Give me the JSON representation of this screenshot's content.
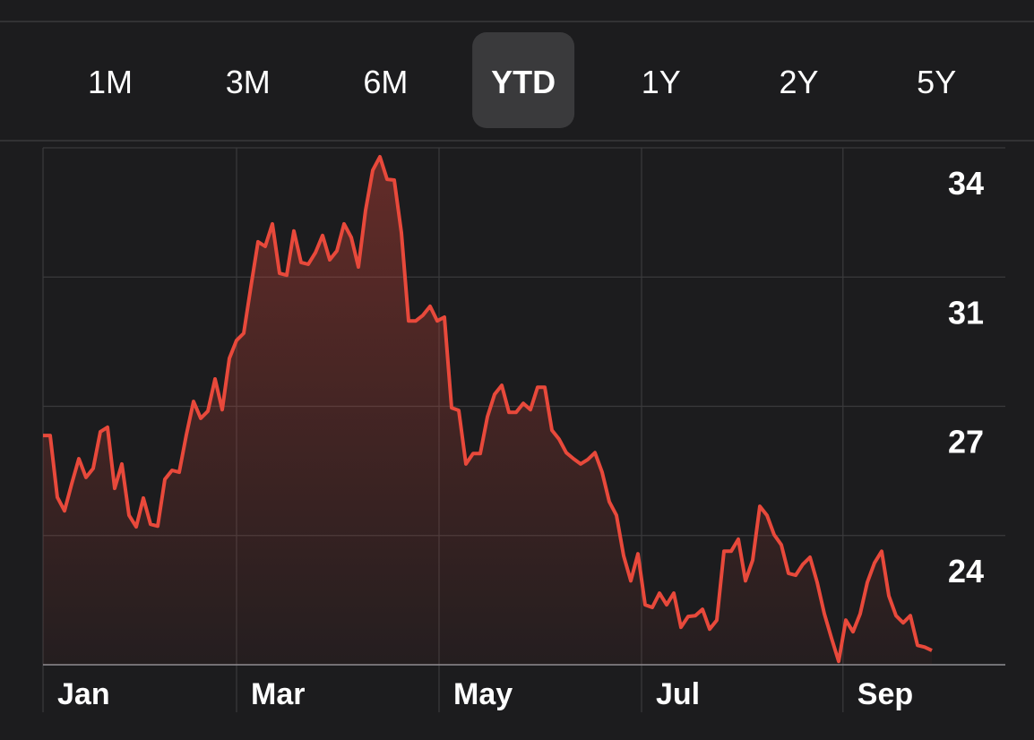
{
  "range_selector": {
    "options": [
      "1M",
      "3M",
      "6M",
      "YTD",
      "1Y",
      "2Y",
      "5Y"
    ],
    "selected": 3
  },
  "chart_data": {
    "type": "line",
    "area": true,
    "grid": true,
    "color": "#e8493b",
    "xlim": [
      0,
      134.25
    ],
    "xticks": [
      {
        "value": 0,
        "label": "Jan"
      },
      {
        "value": 27,
        "label": "Mar"
      },
      {
        "value": 55.25,
        "label": "May"
      },
      {
        "value": 83.5,
        "label": "Jul"
      },
      {
        "value": 111.6,
        "label": "Sep"
      }
    ],
    "ylim": [
      20.5,
      34.3
    ],
    "yticks": [
      34.3,
      30.85,
      27.4,
      23.95
    ],
    "ytick_labels": [
      "34",
      "31",
      "27",
      "24"
    ],
    "values": [
      26.62,
      26.62,
      24.97,
      24.61,
      25.33,
      26.0,
      25.5,
      25.74,
      26.72,
      26.84,
      25.21,
      25.86,
      24.49,
      24.18,
      24.95,
      24.25,
      24.2,
      25.45,
      25.69,
      25.64,
      26.64,
      27.53,
      27.08,
      27.27,
      28.13,
      27.31,
      28.68,
      29.16,
      29.35,
      30.59,
      31.79,
      31.67,
      32.27,
      30.95,
      30.9,
      32.08,
      31.24,
      31.19,
      31.5,
      31.96,
      31.31,
      31.55,
      32.27,
      31.91,
      31.12,
      32.63,
      33.7,
      34.06,
      33.46,
      33.44,
      32.03,
      29.68,
      29.68,
      29.83,
      30.07,
      29.68,
      29.78,
      27.36,
      27.29,
      25.86,
      26.14,
      26.14,
      27.12,
      27.72,
      27.96,
      27.24,
      27.24,
      27.48,
      27.31,
      27.91,
      27.91,
      26.76,
      26.52,
      26.16,
      26.0,
      25.86,
      25.98,
      26.16,
      25.64,
      24.85,
      24.49,
      23.41,
      22.74,
      23.46,
      22.1,
      22.03,
      22.41,
      22.1,
      22.41,
      21.5,
      21.79,
      21.81,
      21.98,
      21.45,
      21.69,
      23.53,
      23.53,
      23.85,
      22.74,
      23.29,
      24.73,
      24.49,
      23.97,
      23.7,
      22.94,
      22.89,
      23.18,
      23.37,
      22.7,
      21.86,
      21.21,
      20.59,
      21.69,
      21.38,
      21.86,
      22.7,
      23.22,
      23.53,
      22.34,
      21.81,
      21.62,
      21.81,
      21.02,
      20.97,
      20.88
    ]
  }
}
